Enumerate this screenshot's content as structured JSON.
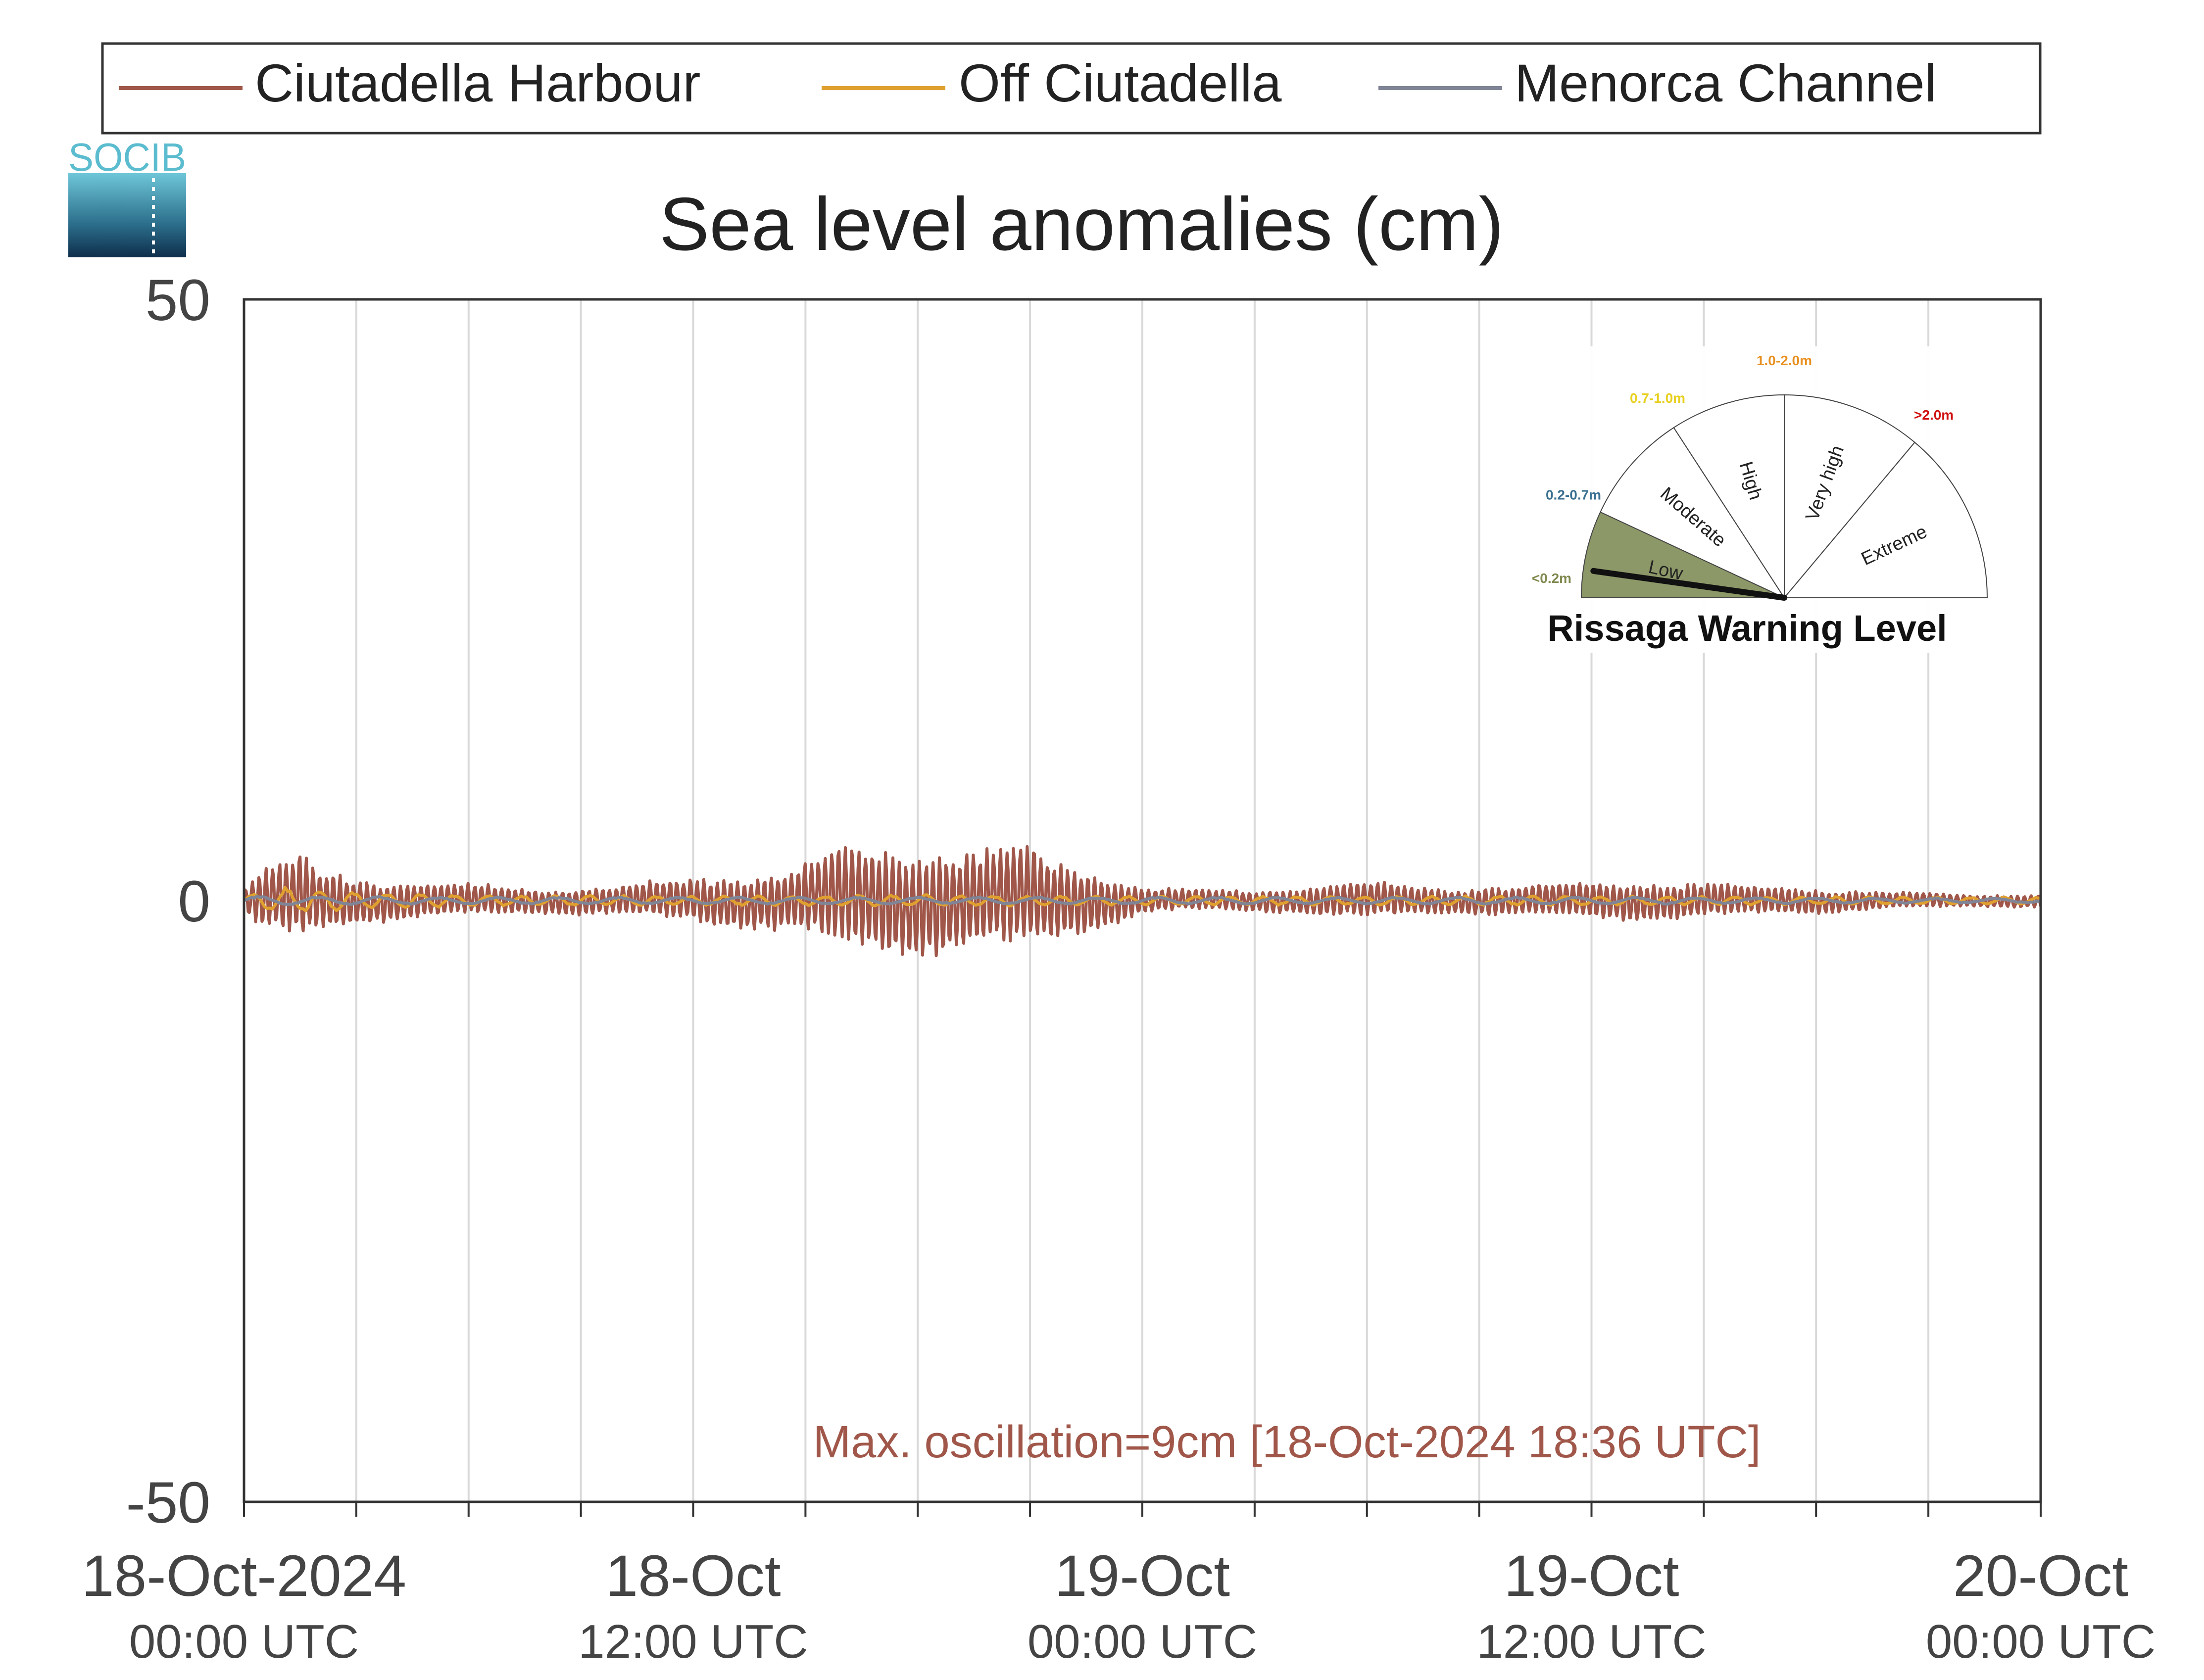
{
  "logo": {
    "text": "SOCIB"
  },
  "legend": {
    "entries": [
      {
        "name": "Ciutadella Harbour",
        "color": "#a0574a"
      },
      {
        "name": "Off Ciutadella",
        "color": "#e0a030"
      },
      {
        "name": "Menorca Channel",
        "color": "#7f8596"
      }
    ]
  },
  "chart_data": {
    "type": "line",
    "title": "Sea level anomalies (cm)",
    "xlabel": "",
    "ylabel": "",
    "x_unit": "hours since 18-Oct-2024 00:00 UTC",
    "xlim": [
      "18-Oct-2024 00:00 UTC",
      "20-Oct-2024 00:00 UTC"
    ],
    "ylim": [
      -50,
      50
    ],
    "yticks": [
      {
        "value": 50,
        "label": "50"
      },
      {
        "value": 0,
        "label": "0"
      },
      {
        "value": -50,
        "label": "-50"
      }
    ],
    "xticks": [
      {
        "hour": 0,
        "date": "18-Oct-2024",
        "time": "00:00 UTC"
      },
      {
        "hour": 12,
        "date": "18-Oct",
        "time": "12:00 UTC"
      },
      {
        "hour": 24,
        "date": "19-Oct",
        "time": "00:00 UTC"
      },
      {
        "hour": 36,
        "date": "19-Oct",
        "time": "12:00 UTC"
      },
      {
        "hour": 48,
        "date": "20-Oct",
        "time": "00:00 UTC"
      }
    ],
    "minor_grid_hours": [
      3,
      6,
      9,
      15,
      18,
      21,
      27,
      30,
      33,
      39,
      42,
      45
    ],
    "grid": "vertical",
    "legend_position": "top, outside",
    "series": [
      {
        "name": "Ciutadella Harbour",
        "color": "#a0574a",
        "envelope_hours": [
          0,
          0.5,
          1,
          1.5,
          2,
          3,
          4,
          6,
          8,
          10,
          12,
          14,
          15,
          16,
          17,
          18,
          18.6,
          19,
          20,
          21,
          22,
          23,
          24,
          26,
          28,
          30,
          32,
          34,
          36,
          38,
          40,
          42,
          44,
          46,
          48
        ],
        "envelope_amplitude_cm": [
          1,
          2.5,
          3,
          3.5,
          2.5,
          2,
          1.5,
          1.3,
          1,
          1.2,
          1.8,
          2.2,
          3,
          4,
          4.5,
          4,
          4.5,
          4,
          4,
          4.2,
          3,
          2,
          1,
          0.8,
          1,
          1.5,
          1,
          1.2,
          1.6,
          1.5,
          1.2,
          1,
          0.7,
          0.5,
          0.5
        ]
      },
      {
        "name": "Off Ciutadella",
        "color": "#e0a030",
        "envelope_hours": [
          0,
          1,
          2,
          3,
          6,
          12,
          18,
          24,
          36,
          48
        ],
        "envelope_amplitude_cm": [
          0.5,
          1.2,
          1,
          0.8,
          0.5,
          0.4,
          0.5,
          0.4,
          0.4,
          0.3
        ]
      },
      {
        "name": "Menorca Channel",
        "color": "#7f8596",
        "envelope_hours": [
          0,
          6,
          12,
          18,
          24,
          36,
          48
        ],
        "envelope_amplitude_cm": [
          0.4,
          0.3,
          0.3,
          0.3,
          0.3,
          0.3,
          0.2
        ]
      }
    ],
    "annotation": "Max. oscillation=9cm [18-Oct-2024 18:36 UTC]",
    "annotation_color": "#a0574a"
  },
  "gauge": {
    "title": "Rissaga Warning Level",
    "current_level": "Low",
    "levels": [
      {
        "name": "Low",
        "range": "<0.2m",
        "color": "#7f8a50",
        "fill": "#8c9868"
      },
      {
        "name": "Moderate",
        "range": "0.2-0.7m",
        "color": "#3a7090",
        "fill": "#ffffff"
      },
      {
        "name": "High",
        "range": "0.7-1.0m",
        "color": "#e8d020",
        "fill": "#ffffff"
      },
      {
        "name": "Very high",
        "range": "1.0-2.0m",
        "color": "#e89020",
        "fill": "#ffffff"
      },
      {
        "name": "Extreme",
        "range": ">2.0m",
        "color": "#d01010",
        "fill": "#ffffff"
      }
    ]
  }
}
